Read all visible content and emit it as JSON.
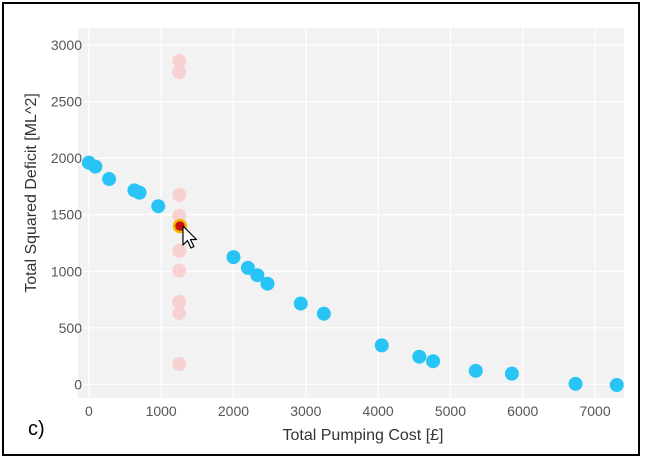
{
  "chart_data": {
    "type": "scatter",
    "xlabel": "Total Pumping Cost [£]",
    "ylabel": "Total Squared Deficit [ML^2]",
    "xlim": [
      -150,
      7400
    ],
    "ylim": [
      -120,
      3150
    ],
    "xticks": [
      0,
      1000,
      2000,
      3000,
      4000,
      5000,
      6000,
      7000
    ],
    "yticks": [
      0,
      500,
      1000,
      1500,
      2000,
      2500,
      3000
    ],
    "grid": true,
    "colors": {
      "pareto": "#29c4f6",
      "candidates": "#f8d2d2",
      "selected_fill": "#cc1111",
      "selected_ring": "#f5b800",
      "background": "#f2f2f2",
      "gridline": "#ffffff"
    },
    "series": [
      {
        "values": [
          {
            "x": 0,
            "y": 1960
          },
          {
            "x": 90,
            "y": 1925
          },
          {
            "x": 280,
            "y": 1815
          },
          {
            "x": 630,
            "y": 1715
          },
          {
            "x": 700,
            "y": 1695
          },
          {
            "x": 960,
            "y": 1575
          },
          {
            "x": 2000,
            "y": 1125
          },
          {
            "x": 2200,
            "y": 1030
          },
          {
            "x": 2330,
            "y": 965
          },
          {
            "x": 2470,
            "y": 890
          },
          {
            "x": 2930,
            "y": 715
          },
          {
            "x": 3250,
            "y": 625
          },
          {
            "x": 4050,
            "y": 345
          },
          {
            "x": 4570,
            "y": 245
          },
          {
            "x": 4760,
            "y": 205
          },
          {
            "x": 5350,
            "y": 120
          },
          {
            "x": 5850,
            "y": 95
          },
          {
            "x": 6730,
            "y": 5
          },
          {
            "x": 7300,
            "y": -5
          }
        ]
      },
      {
        "values": [
          {
            "x": 1250,
            "y": 2860
          },
          {
            "x": 1250,
            "y": 2760
          },
          {
            "x": 1250,
            "y": 1675
          },
          {
            "x": 1250,
            "y": 1490
          },
          {
            "x": 1250,
            "y": 1180
          },
          {
            "x": 1250,
            "y": 1005
          },
          {
            "x": 1250,
            "y": 730
          },
          {
            "x": 1250,
            "y": 630
          },
          {
            "x": 1250,
            "y": 180
          }
        ]
      },
      {
        "values": [
          {
            "x": 1260,
            "y": 1400
          }
        ]
      }
    ]
  },
  "panel_label": "c)"
}
